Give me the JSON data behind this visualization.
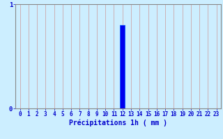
{
  "title": "",
  "xlabel": "Précipitations 1h ( mm )",
  "ylabel": "",
  "background_color": "#cceeff",
  "bar_color": "#0000ee",
  "bar_edge_color": "#0055ff",
  "hours": [
    0,
    1,
    2,
    3,
    4,
    5,
    6,
    7,
    8,
    9,
    10,
    11,
    12,
    13,
    14,
    15,
    16,
    17,
    18,
    19,
    20,
    21,
    22,
    23
  ],
  "values": [
    0,
    0,
    0,
    0,
    0,
    0,
    0,
    0,
    0,
    0,
    0,
    0,
    0.8,
    0,
    0,
    0,
    0,
    0,
    0,
    0,
    0,
    0,
    0,
    0
  ],
  "ylim": [
    0,
    1.0
  ],
  "xlim": [
    -0.5,
    23.5
  ],
  "yticks": [
    0,
    1
  ],
  "xtick_labels": [
    "0",
    "1",
    "2",
    "3",
    "4",
    "5",
    "6",
    "7",
    "8",
    "9",
    "10",
    "11",
    "12",
    "13",
    "14",
    "15",
    "16",
    "17",
    "18",
    "19",
    "20",
    "21",
    "22",
    "23"
  ],
  "grid_color": "#cc9999",
  "axis_color": "#888888",
  "label_color": "#0000cc",
  "fontsize_xlabel": 7.0,
  "fontsize_tick": 5.5
}
